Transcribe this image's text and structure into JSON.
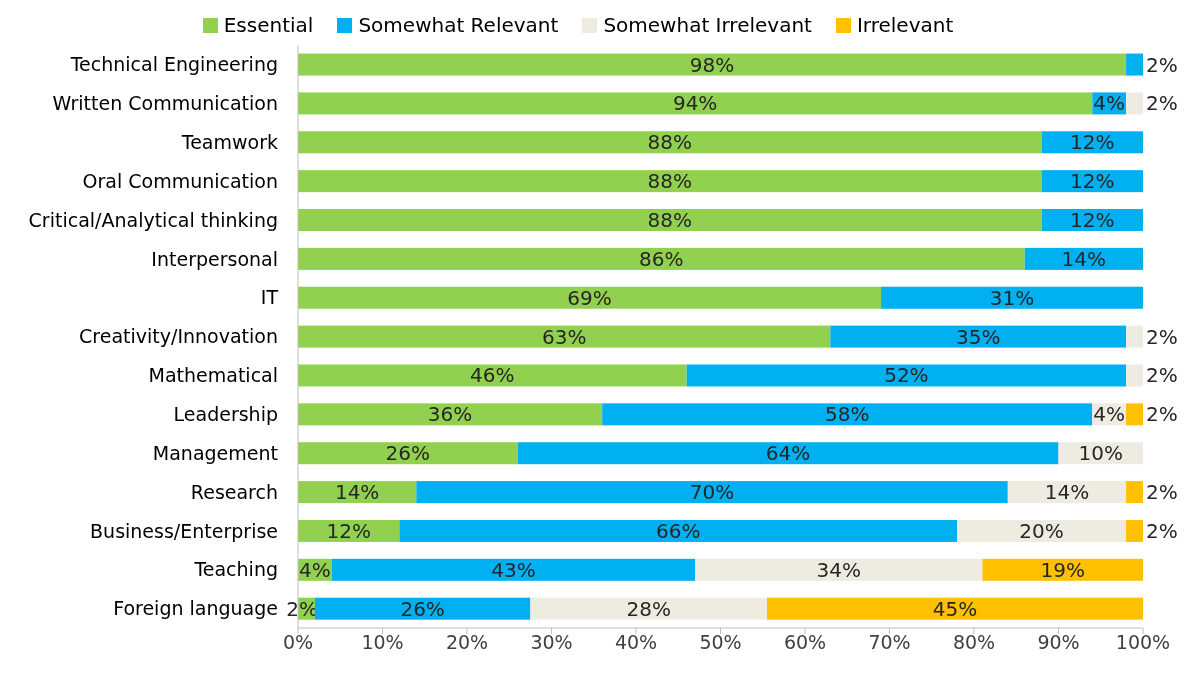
{
  "chart_data": {
    "type": "bar",
    "orientation": "horizontal",
    "stacked": true,
    "legend": "top",
    "grid": false,
    "categories": [
      "Technical Engineering",
      "Written Communication",
      "Teamwork",
      "Oral Communication",
      "Critical/Analytical thinking",
      "Interpersonal",
      "IT",
      "Creativity/Innovation",
      "Mathematical",
      "Leadership",
      "Management",
      "Research",
      "Business/Enterprise",
      "Teaching",
      "Foreign language"
    ],
    "series": [
      {
        "name": "Essential",
        "color": "#92d050",
        "values": [
          98,
          94,
          88,
          88,
          88,
          86,
          69,
          63,
          46,
          36,
          26,
          14,
          12,
          4,
          2
        ],
        "value_labels": [
          "98%",
          "94%",
          "88%",
          "88%",
          "88%",
          "86%",
          "69%",
          "63%",
          "46%",
          "36%",
          "26%",
          "14%",
          "12%",
          "4%",
          "2%"
        ]
      },
      {
        "name": "Somewhat Relevant",
        "color": "#00b0f0",
        "values": [
          2,
          4,
          12,
          12,
          12,
          14,
          31,
          35,
          52,
          58,
          64,
          70,
          66,
          43,
          25.5
        ],
        "value_labels": [
          "2%",
          "4%",
          "12%",
          "12%",
          "12%",
          "14%",
          "31%",
          "35%",
          "52%",
          "58%",
          "64%",
          "70%",
          "66%",
          "43%",
          "26%"
        ]
      },
      {
        "name": "Somewhat Irrelevant",
        "color": "#eeece1",
        "values": [
          null,
          2,
          null,
          null,
          null,
          null,
          null,
          2,
          2,
          4,
          10,
          14,
          20,
          34,
          28
        ],
        "value_labels": [
          null,
          "2%",
          null,
          null,
          null,
          null,
          null,
          "2%",
          "2%",
          "4%",
          "10%",
          "14%",
          "20%",
          "34%",
          "28%"
        ]
      },
      {
        "name": "Irrelevant",
        "color": "#ffc000",
        "values": [
          null,
          null,
          null,
          null,
          null,
          null,
          null,
          null,
          null,
          2,
          null,
          2,
          2,
          19,
          44.5
        ],
        "value_labels": [
          null,
          null,
          null,
          null,
          null,
          null,
          null,
          null,
          null,
          "2%",
          null,
          "2%",
          "2%",
          "19%",
          "45%"
        ]
      }
    ],
    "xlim": [
      0,
      100
    ],
    "xticks": [
      {
        "value": 0,
        "label": "0%"
      },
      {
        "value": 10,
        "label": "10%"
      },
      {
        "value": 20,
        "label": "20%"
      },
      {
        "value": 30,
        "label": "30%"
      },
      {
        "value": 40,
        "label": "40%"
      },
      {
        "value": 50,
        "label": "50%"
      },
      {
        "value": 60,
        "label": "60%"
      },
      {
        "value": 70,
        "label": "70%"
      },
      {
        "value": 80,
        "label": "80%"
      },
      {
        "value": 90,
        "label": "90%"
      },
      {
        "value": 100,
        "label": "100%"
      }
    ]
  }
}
